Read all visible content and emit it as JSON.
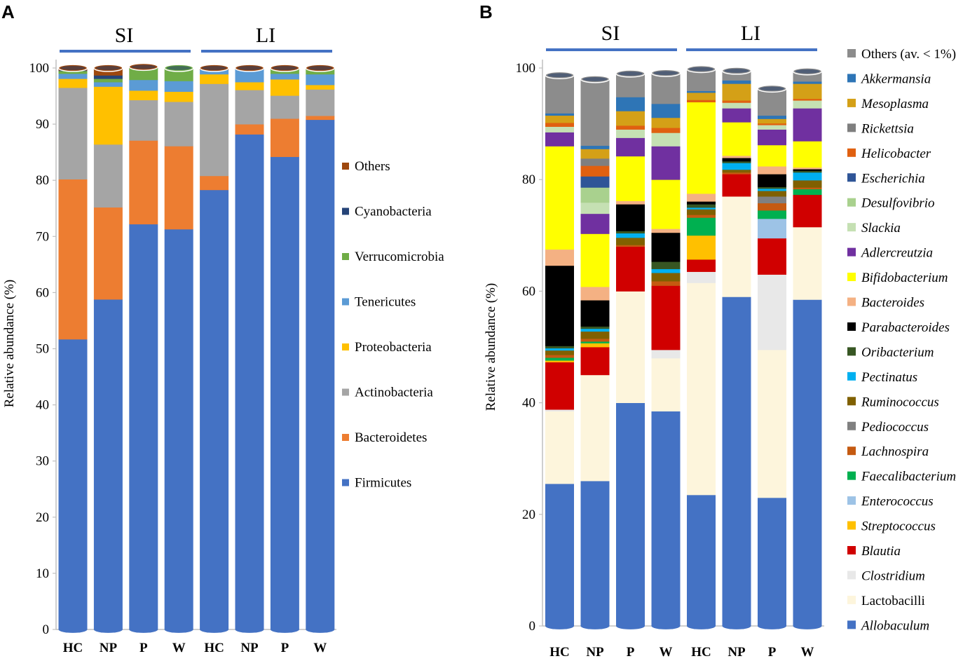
{
  "panels": [
    {
      "letter": "A",
      "groups": [
        "SI",
        "LI"
      ]
    },
    {
      "letter": "B",
      "groups": [
        "SI",
        "LI"
      ]
    }
  ],
  "colors": {
    "group_bar": "#4472C4",
    "axis": "#bfbfbf",
    "bar_top": "#1f3864"
  },
  "chart_data": [
    {
      "type": "bar",
      "stacked": true,
      "title": "",
      "xlabel": "",
      "ylabel": "Relative abundance (%)",
      "ylim": [
        0,
        100
      ],
      "yticks": [
        0,
        10,
        20,
        30,
        40,
        50,
        60,
        70,
        80,
        90,
        100
      ],
      "categories": [
        "HC",
        "NP",
        "P",
        "W",
        "HC",
        "NP",
        "P",
        "W"
      ],
      "series": [
        {
          "name": "Firmicutes",
          "color": "#4472C4",
          "values": [
            51.7,
            58.8,
            72.2,
            71.3,
            78.3,
            88.2,
            84.2,
            90.8
          ]
        },
        {
          "name": "Bacteroidetes",
          "color": "#ED7D31",
          "values": [
            28.5,
            16.4,
            14.9,
            14.8,
            2.5,
            1.8,
            6.8,
            0.7
          ]
        },
        {
          "name": "Actinobacteria",
          "color": "#A5A5A5",
          "values": [
            16.3,
            11.2,
            7.2,
            7.9,
            16.4,
            6.1,
            4.1,
            4.7
          ]
        },
        {
          "name": "Proteobacteria",
          "color": "#FFC000",
          "values": [
            1.6,
            10.3,
            1.7,
            1.8,
            1.7,
            1.4,
            2.9,
            0.8
          ]
        },
        {
          "name": "Tenericutes",
          "color": "#5B9BD5",
          "values": [
            0.9,
            0.8,
            1.9,
            1.9,
            0.8,
            2.3,
            1.0,
            1.9
          ]
        },
        {
          "name": "Verrucomicrobia",
          "color": "#70AD47",
          "values": [
            0.5,
            0.6,
            2.1,
            2.3,
            0.0,
            0.0,
            0.8,
            0.9
          ]
        },
        {
          "name": "Cyanobacteria",
          "color": "#264478",
          "values": [
            0.1,
            0.6,
            0.0,
            0.0,
            0.0,
            0.0,
            0.0,
            0.0
          ]
        },
        {
          "name": "Others",
          "color": "#9E480E",
          "values": [
            0.4,
            1.3,
            0.2,
            0.0,
            0.3,
            0.2,
            0.2,
            0.2
          ]
        }
      ]
    },
    {
      "type": "bar",
      "stacked": true,
      "title": "",
      "xlabel": "",
      "ylabel": "Relative abundance (%)",
      "ylim": [
        0,
        100
      ],
      "yticks": [
        0,
        20,
        40,
        60,
        80,
        100
      ],
      "categories": [
        "HC",
        "NP",
        "P",
        "W",
        "HC",
        "NP",
        "P",
        "W"
      ],
      "series": [
        {
          "name": "Allobaculum",
          "italic": true,
          "color": "#4472C4",
          "values": [
            25.5,
            26.0,
            40.0,
            38.5,
            23.5,
            59.0,
            23.0,
            58.5
          ]
        },
        {
          "name": "Lactobacilli",
          "italic": false,
          "color": "#FDF5DC",
          "values": [
            13.0,
            19.0,
            20.0,
            9.5,
            38.0,
            18.0,
            26.5,
            13.0
          ]
        },
        {
          "name": "Clostridium",
          "italic": true,
          "color": "#E8E8E8",
          "values": [
            0.3,
            0.0,
            0.0,
            1.5,
            2.0,
            0.0,
            13.5,
            0.0
          ]
        },
        {
          "name": "Blautia",
          "italic": true,
          "color": "#D00000",
          "values": [
            8.5,
            5.0,
            8.0,
            11.5,
            2.2,
            4.0,
            6.5,
            5.8
          ]
        },
        {
          "name": "Streptococcus",
          "italic": true,
          "color": "#FFC000",
          "values": [
            0.3,
            0.7,
            0.0,
            0.0,
            4.3,
            0.0,
            0.0,
            0.0
          ]
        },
        {
          "name": "Enterococcus",
          "italic": true,
          "color": "#9DC3E6",
          "values": [
            0.0,
            0.0,
            0.0,
            0.0,
            0.0,
            0.0,
            3.5,
            0.0
          ]
        },
        {
          "name": "Faecalibacterium",
          "italic": true,
          "color": "#00B050",
          "values": [
            0.5,
            0.3,
            0.0,
            0.0,
            3.2,
            0.0,
            1.5,
            1.0
          ]
        },
        {
          "name": "Lachnospira",
          "italic": true,
          "color": "#C55A11",
          "values": [
            0.5,
            0.5,
            0.3,
            0.8,
            0.5,
            0.3,
            1.3,
            0.3
          ]
        },
        {
          "name": "Pediococcus",
          "italic": true,
          "color": "#808080",
          "values": [
            0.0,
            0.0,
            0.0,
            0.0,
            0.0,
            0.0,
            1.2,
            0.0
          ]
        },
        {
          "name": "Ruminococcus",
          "italic": true,
          "color": "#806000",
          "values": [
            0.8,
            1.3,
            1.3,
            1.5,
            1.0,
            0.5,
            1.0,
            1.3
          ]
        },
        {
          "name": "Pectinatus",
          "italic": true,
          "color": "#00B0F0",
          "values": [
            0.4,
            0.5,
            0.8,
            0.7,
            0.3,
            1.2,
            0.4,
            1.4
          ]
        },
        {
          "name": "Oribacterium",
          "italic": true,
          "color": "#375623",
          "values": [
            0.4,
            0.4,
            0.4,
            1.3,
            0.6,
            0.3,
            0.3,
            0.3
          ]
        },
        {
          "name": "Parabacteroides",
          "italic": true,
          "color": "#000000",
          "values": [
            14.4,
            4.7,
            4.8,
            5.2,
            0.5,
            0.6,
            2.3,
            0.3
          ]
        },
        {
          "name": "Bacteroides",
          "italic": true,
          "color": "#F4B183",
          "values": [
            2.9,
            2.4,
            0.6,
            0.7,
            1.4,
            0.4,
            1.4,
            0.3
          ]
        },
        {
          "name": "Bifidobacterium",
          "italic": true,
          "color": "#FFFF00",
          "values": [
            18.5,
            9.5,
            8.0,
            8.8,
            16.4,
            6.0,
            3.8,
            4.7
          ]
        },
        {
          "name": "Adlercreutzia",
          "italic": true,
          "color": "#7030A0",
          "values": [
            2.5,
            3.6,
            3.3,
            6.0,
            0.0,
            2.5,
            2.8,
            5.9
          ]
        },
        {
          "name": "Slackia",
          "italic": true,
          "color": "#C5E0B3",
          "values": [
            1.0,
            2.0,
            1.5,
            2.4,
            0.0,
            1.0,
            0.8,
            1.4
          ]
        },
        {
          "name": "Desulfovibrio",
          "italic": true,
          "color": "#A9D18E",
          "values": [
            0.0,
            2.7,
            0.0,
            0.0,
            0.0,
            0.0,
            0.0,
            0.0
          ]
        },
        {
          "name": "Escherichia",
          "italic": true,
          "color": "#2F5597",
          "values": [
            0.0,
            2.0,
            0.0,
            0.0,
            0.0,
            0.0,
            0.0,
            0.0
          ]
        },
        {
          "name": "Helicobacter",
          "italic": true,
          "color": "#E06010",
          "values": [
            0.7,
            1.9,
            0.7,
            0.9,
            0.4,
            0.4,
            0.3,
            0.3
          ]
        },
        {
          "name": "Rickettsia",
          "italic": true,
          "color": "#7F7F7F",
          "values": [
            0.0,
            1.3,
            0.0,
            0.0,
            0.0,
            0.0,
            0.0,
            0.0
          ]
        },
        {
          "name": "Mesoplasma",
          "italic": true,
          "color": "#D4A017",
          "values": [
            1.3,
            1.7,
            2.6,
            1.8,
            1.3,
            3.0,
            0.8,
            2.7
          ]
        },
        {
          "name": "Akkermansia",
          "italic": true,
          "color": "#2E75B6",
          "values": [
            0.4,
            0.6,
            2.5,
            2.5,
            0.3,
            0.6,
            0.6,
            0.4
          ]
        },
        {
          "name": "Others (av. < 1%)",
          "italic": false,
          "color": "#8C8C8C",
          "values": [
            6.8,
            11.9,
            4.2,
            5.5,
            3.9,
            1.7,
            4.8,
            1.8
          ]
        }
      ]
    }
  ]
}
